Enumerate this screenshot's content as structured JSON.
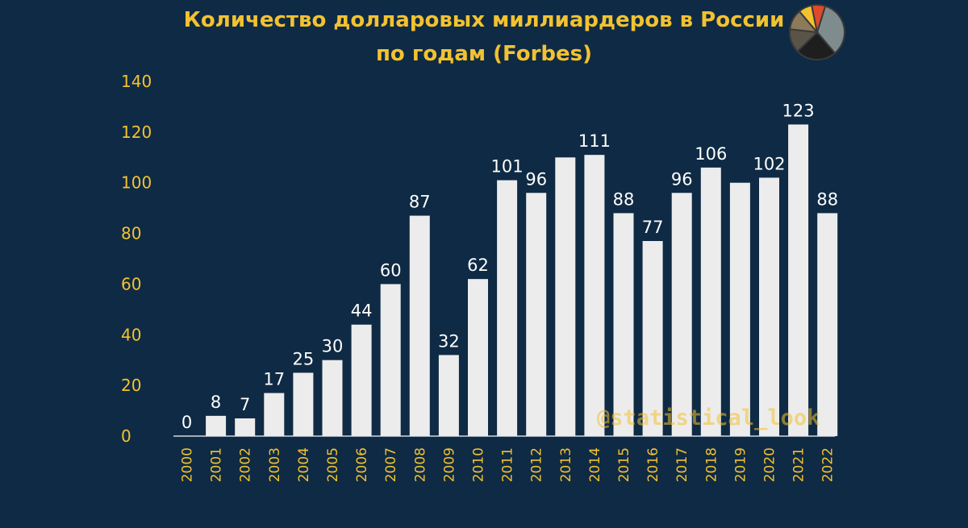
{
  "header": {
    "title_line1": "Количество долларовых миллиардеров в России",
    "title_line2": "по годам (Forbes)"
  },
  "watermark": "@statistical_look",
  "logo": {
    "icon": "pie-chart-logo-icon",
    "colors": [
      "#7f8c8d",
      "#1e1e1e",
      "#5a5448",
      "#8c7a5a",
      "#f2c230",
      "#e04a2a"
    ]
  },
  "colors": {
    "background": "#0f2a44",
    "bar": "#ececec",
    "text_accent": "#f2c230",
    "value_label": "#ffffff"
  },
  "chart_data": {
    "type": "bar",
    "title": "Количество долларовых миллиардеров в России по годам (Forbes)",
    "xlabel": "",
    "ylabel": "",
    "ylim": [
      0,
      140
    ],
    "yticks": [
      0,
      20,
      40,
      60,
      80,
      100,
      120,
      140
    ],
    "grid": false,
    "categories": [
      "2000",
      "2001",
      "2002",
      "2003",
      "2004",
      "2005",
      "2006",
      "2007",
      "2008",
      "2009",
      "2010",
      "2011",
      "2012",
      "2013",
      "2014",
      "2015",
      "2016",
      "2017",
      "2018",
      "2019",
      "2020",
      "2021",
      "2022"
    ],
    "values": [
      0,
      8,
      7,
      17,
      25,
      30,
      44,
      60,
      87,
      32,
      62,
      101,
      96,
      110,
      111,
      88,
      77,
      96,
      106,
      100,
      102,
      123,
      88
    ],
    "data_labels": [
      "0",
      "8",
      "7",
      "17",
      "25",
      "30",
      "44",
      "60",
      "87",
      "32",
      "62",
      "101",
      "96",
      "",
      "111",
      "88",
      "77",
      "96",
      "106",
      "",
      "102",
      "123",
      "88"
    ]
  }
}
